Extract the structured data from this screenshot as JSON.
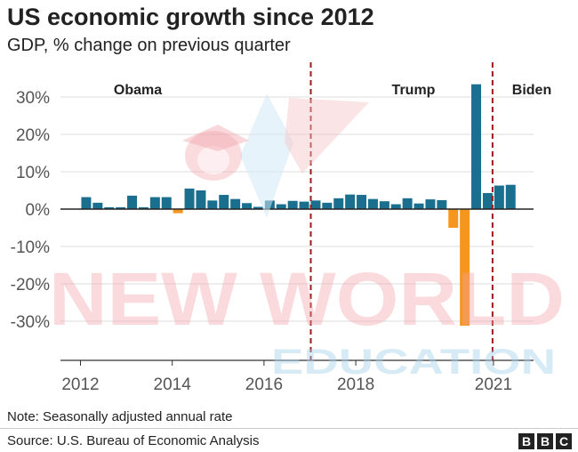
{
  "title": "US economic growth since 2012",
  "subtitle": "GDP, % change on previous quarter",
  "note": "Note: Seasonally adjusted annual rate",
  "source": "Source: U.S. Bureau of Economic Analysis",
  "logo": [
    "B",
    "B",
    "C"
  ],
  "watermark": {
    "line1": "NEW WORLD",
    "line2": "EDUCATION"
  },
  "colors": {
    "positive": "#1a6f8e",
    "negative": "#f5971e",
    "divider": "#9b1c1c",
    "grid": "#dddddd"
  },
  "chart_data": {
    "type": "bar",
    "title": "US economic growth since 2012",
    "subtitle": "GDP, % change on previous quarter",
    "ylim": [
      -40,
      35
    ],
    "yticks": [
      {
        "value": 30,
        "label": "30%"
      },
      {
        "value": 20,
        "label": "20%"
      },
      {
        "value": 10,
        "label": "10%"
      },
      {
        "value": 0,
        "label": "0%"
      },
      {
        "value": -10,
        "label": "-10%"
      },
      {
        "value": -20,
        "label": "-20%"
      },
      {
        "value": -30,
        "label": "-30%"
      }
    ],
    "xticks": [
      {
        "value": 2012,
        "label": "2012"
      },
      {
        "value": 2014,
        "label": "2014"
      },
      {
        "value": 2016,
        "label": "2016"
      },
      {
        "value": 2018,
        "label": "2018"
      },
      {
        "value": 2021,
        "label": "2021"
      }
    ],
    "grid": true,
    "quarters": [
      "2012 Q1",
      "2012 Q2",
      "2012 Q3",
      "2012 Q4",
      "2013 Q1",
      "2013 Q2",
      "2013 Q3",
      "2013 Q4",
      "2014 Q1",
      "2014 Q2",
      "2014 Q3",
      "2014 Q4",
      "2015 Q1",
      "2015 Q2",
      "2015 Q3",
      "2015 Q4",
      "2016 Q1",
      "2016 Q2",
      "2016 Q3",
      "2016 Q4",
      "2017 Q1",
      "2017 Q2",
      "2017 Q3",
      "2017 Q4",
      "2018 Q1",
      "2018 Q2",
      "2018 Q3",
      "2018 Q4",
      "2019 Q1",
      "2019 Q2",
      "2019 Q3",
      "2019 Q4",
      "2020 Q1",
      "2020 Q2",
      "2020 Q3",
      "2020 Q4",
      "2021 Q1",
      "2021 Q2"
    ],
    "values": [
      3.2,
      1.7,
      0.5,
      0.5,
      3.6,
      0.5,
      3.2,
      3.2,
      -1.1,
      5.5,
      5.0,
      2.3,
      3.8,
      2.7,
      1.6,
      0.6,
      2.3,
      1.3,
      2.2,
      2.0,
      2.3,
      1.7,
      2.9,
      3.9,
      3.8,
      2.7,
      2.1,
      1.3,
      2.9,
      1.5,
      2.6,
      2.4,
      -5.0,
      -31.2,
      33.4,
      4.3,
      6.3,
      6.5
    ],
    "presidents": [
      {
        "name": "Obama",
        "start": "2012 Q1"
      },
      {
        "name": "Trump",
        "start": "2017 Q1"
      },
      {
        "name": "Biden",
        "start": "2021 Q1"
      }
    ]
  }
}
